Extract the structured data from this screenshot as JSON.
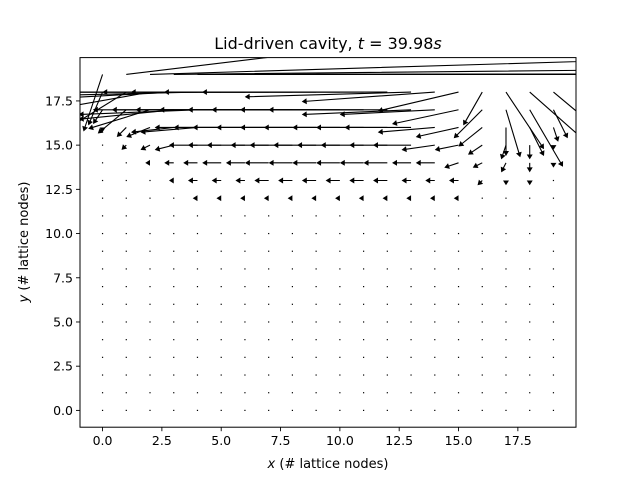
{
  "chart_data": {
    "type": "quiver",
    "title_prefix": "Lid-driven cavity, ",
    "title_var": "t",
    "title_eq": " = ",
    "title_value": "39.98",
    "title_unit": "s",
    "xlabel_var": "x",
    "xlabel_rest": " (# lattice nodes)",
    "ylabel_var": "y",
    "ylabel_rest": " (# lattice nodes)",
    "xlim": [
      -0.95,
      19.95
    ],
    "ylim": [
      -0.95,
      19.95
    ],
    "x_ticks": [
      0.0,
      2.5,
      5.0,
      7.5,
      10.0,
      12.5,
      15.0,
      17.5
    ],
    "x_tick_labels": [
      "0.0",
      "2.5",
      "5.0",
      "7.5",
      "10.0",
      "12.5",
      "15.0",
      "17.5"
    ],
    "y_ticks": [
      0.0,
      2.5,
      5.0,
      7.5,
      10.0,
      12.5,
      15.0,
      17.5
    ],
    "y_tick_labels": [
      "0.0",
      "2.5",
      "5.0",
      "7.5",
      "10.0",
      "12.5",
      "15.0",
      "17.5"
    ],
    "grid": false,
    "arrow_color": "#000000",
    "grid_x": [
      0,
      1,
      2,
      3,
      4,
      5,
      6,
      7,
      8,
      9,
      10,
      11,
      12,
      13,
      14,
      15,
      16,
      17,
      18,
      19
    ],
    "grid_y": [
      0,
      1,
      2,
      3,
      4,
      5,
      6,
      7,
      8,
      9,
      10,
      11,
      12,
      13,
      14,
      15,
      16,
      17,
      18,
      19
    ],
    "row19_u": [
      -0.04,
      1.0,
      1.0,
      1.0,
      1.0,
      1.0,
      1.0,
      1.0,
      1.0,
      1.0,
      1.0,
      1.0,
      1.0,
      1.0,
      1.0,
      1.0,
      1.0,
      1.0,
      1.0,
      1.0
    ],
    "row19_v": [
      -0.12,
      0.12,
      0.03,
      0.01,
      0.0,
      0.0,
      0.0,
      0.0,
      0.0,
      0.0,
      0.0,
      0.0,
      0.0,
      0.0,
      0.0,
      0.0,
      0.0,
      0.0,
      0.0,
      0.0
    ],
    "row18_u": [
      -0.03,
      -0.13,
      -0.28,
      -0.38,
      -0.43,
      -0.45,
      -0.46,
      -0.46,
      -0.46,
      -0.45,
      -0.44,
      -0.42,
      -0.39,
      -0.35,
      -0.28,
      -0.17,
      -0.04,
      0.08,
      0.17,
      0.12
    ],
    "row18_v": [
      -0.07,
      -0.08,
      -0.05,
      -0.02,
      -0.01,
      0.0,
      0.0,
      0.0,
      0.0,
      0.0,
      0.0,
      0.0,
      0.0,
      -0.01,
      -0.02,
      -0.04,
      -0.07,
      -0.12,
      -0.15,
      -0.1
    ],
    "row17_u": [
      -0.02,
      -0.06,
      -0.13,
      -0.2,
      -0.25,
      -0.27,
      -0.28,
      -0.28,
      -0.28,
      -0.27,
      -0.27,
      -0.26,
      -0.25,
      -0.23,
      -0.2,
      -0.14,
      -0.06,
      0.03,
      0.07,
      0.03
    ],
    "row17_v": [
      -0.03,
      -0.05,
      -0.04,
      -0.02,
      -0.01,
      0.0,
      0.0,
      0.0,
      0.0,
      0.0,
      0.0,
      0.0,
      0.0,
      -0.01,
      -0.01,
      -0.03,
      -0.06,
      -0.1,
      -0.12,
      -0.06
    ],
    "row16_u": [
      0.0,
      -0.02,
      -0.05,
      -0.09,
      -0.12,
      -0.14,
      -0.15,
      -0.16,
      -0.16,
      -0.16,
      -0.16,
      -0.15,
      -0.15,
      -0.14,
      -0.12,
      -0.09,
      -0.05,
      0.0,
      0.03,
      0.01
    ],
    "row16_v": [
      -0.01,
      -0.02,
      -0.02,
      -0.01,
      -0.01,
      0.0,
      0.0,
      0.0,
      0.0,
      0.0,
      0.0,
      0.0,
      0.0,
      0.0,
      -0.01,
      -0.02,
      -0.04,
      -0.06,
      -0.06,
      -0.03
    ],
    "row15_u": [
      0.0,
      -0.01,
      -0.02,
      -0.04,
      -0.06,
      -0.07,
      -0.08,
      -0.08,
      -0.09,
      -0.09,
      -0.09,
      -0.09,
      -0.08,
      -0.08,
      -0.07,
      -0.05,
      -0.03,
      -0.01,
      0.0,
      0.0
    ],
    "row15_v": [
      0.0,
      -0.01,
      -0.01,
      -0.01,
      0.0,
      0.0,
      0.0,
      0.0,
      0.0,
      0.0,
      0.0,
      0.0,
      0.0,
      0.0,
      -0.01,
      -0.01,
      -0.02,
      -0.03,
      -0.03,
      -0.01
    ],
    "row14_u": [
      0.0,
      0.0,
      -0.01,
      -0.02,
      -0.03,
      -0.04,
      -0.04,
      -0.05,
      -0.05,
      -0.05,
      -0.05,
      -0.05,
      -0.05,
      -0.04,
      -0.04,
      -0.03,
      -0.02,
      -0.01,
      0.0,
      0.0
    ],
    "row14_v": [
      0.0,
      0.0,
      0.0,
      0.0,
      0.0,
      0.0,
      0.0,
      0.0,
      0.0,
      0.0,
      0.0,
      0.0,
      0.0,
      0.0,
      0.0,
      -0.01,
      -0.01,
      -0.02,
      -0.02,
      -0.01
    ],
    "row13_u": [
      0.0,
      0.0,
      0.0,
      -0.01,
      -0.02,
      -0.02,
      -0.02,
      -0.03,
      -0.03,
      -0.03,
      -0.03,
      -0.03,
      -0.03,
      -0.02,
      -0.02,
      -0.02,
      -0.01,
      0.0,
      0.0,
      0.0
    ],
    "row13_v": [
      0.0,
      0.0,
      0.0,
      0.0,
      0.0,
      0.0,
      0.0,
      0.0,
      0.0,
      0.0,
      0.0,
      0.0,
      0.0,
      0.0,
      0.0,
      0.0,
      -0.01,
      -0.01,
      -0.01,
      0.0
    ],
    "row12_u": [
      0.0,
      0.0,
      0.0,
      0.0,
      -0.01,
      -0.01,
      -0.01,
      -0.01,
      -0.01,
      -0.01,
      -0.01,
      -0.01,
      -0.01,
      -0.01,
      -0.01,
      -0.01,
      0.0,
      0.0,
      0.0,
      0.0
    ],
    "row12_v": [
      0.0,
      0.0,
      0.0,
      0.0,
      0.0,
      0.0,
      0.0,
      0.0,
      0.0,
      0.0,
      0.0,
      0.0,
      0.0,
      0.0,
      0.0,
      0.0,
      0.0,
      0.0,
      0.0,
      0.0
    ]
  }
}
